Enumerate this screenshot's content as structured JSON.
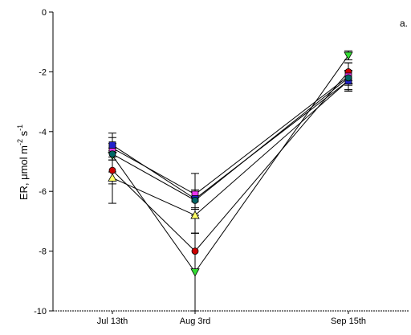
{
  "chart_data": {
    "type": "line",
    "panel_label": "a.",
    "xlabel": "",
    "ylabel": {
      "prefix": "ER, μmol m",
      "sup1": "-2",
      "mid": " s",
      "sup2": "-1"
    },
    "categories": [
      "Jul 13th",
      "Aug 3rd",
      "Sep 15th"
    ],
    "ylim": [
      -10,
      0
    ],
    "yticks": [
      0,
      -2,
      -4,
      -6,
      -8,
      -10
    ],
    "grid": false,
    "series": [
      {
        "marker": "circle",
        "color": "#cc0000",
        "values": [
          -5.3,
          -8.0,
          -2.0
        ],
        "err": [
          1.1,
          0.6,
          0.3
        ]
      },
      {
        "marker": "triangle-down",
        "color": "#33dd33",
        "values": [
          -4.8,
          -8.7,
          -1.45
        ],
        "err": [
          0.15,
          1.3,
          0.15
        ]
      },
      {
        "marker": "triangle-up",
        "color": "#ffff66",
        "values": [
          -5.55,
          -6.8,
          -2.3
        ],
        "err": [
          0.2,
          0.6,
          0.3
        ]
      },
      {
        "marker": "square",
        "color": "#ee33ee",
        "values": [
          -4.55,
          -6.1,
          -2.15
        ],
        "err": [
          0.15,
          0.7,
          0.45
        ]
      },
      {
        "marker": "square",
        "color": "#2222cc",
        "values": [
          -4.45,
          -6.25,
          -2.3
        ],
        "err": [
          0.4,
          0.3,
          0.35
        ]
      },
      {
        "marker": "circle",
        "color": "#006666",
        "values": [
          -4.75,
          -6.3,
          -2.2
        ],
        "err": [
          0.2,
          0.3,
          0.25
        ]
      }
    ]
  }
}
